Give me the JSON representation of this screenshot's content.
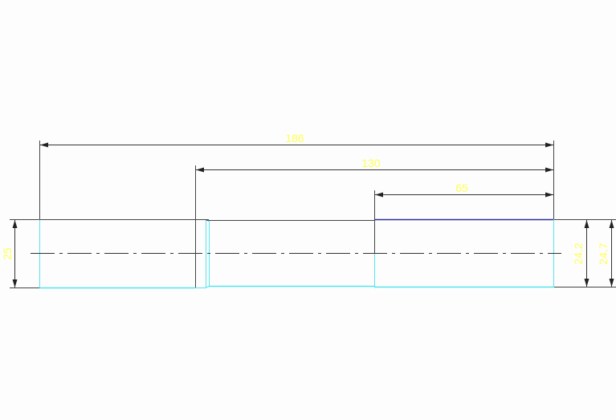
{
  "colors": {
    "background": "#fdfdfd",
    "dimension_line": "#333333",
    "dimension_text": "#ffff55",
    "outline_cyan": "#55e5ee",
    "edge_blue": "#2a2a9a",
    "center_line": "#333333"
  },
  "dimensions": {
    "overall_length": "186",
    "length_130": "130",
    "length_65": "65",
    "left_diameter": "25",
    "right_diameter_inner": "24.2",
    "right_diameter_outer": "24.7"
  }
}
